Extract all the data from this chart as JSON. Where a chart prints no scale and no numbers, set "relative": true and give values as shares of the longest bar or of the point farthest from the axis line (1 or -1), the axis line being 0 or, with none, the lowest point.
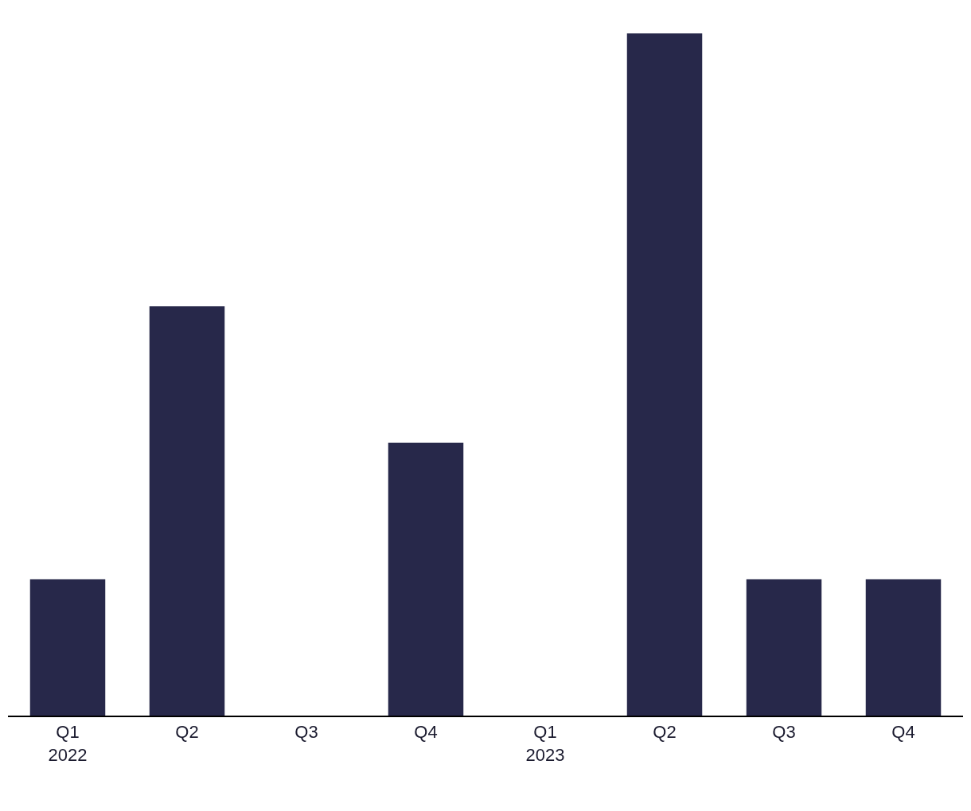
{
  "chart_data": {
    "type": "bar",
    "relative": true,
    "categories": [
      "Q1\n2022",
      "Q2",
      "Q3",
      "Q4",
      "Q1\n2023",
      "Q2",
      "Q3",
      "Q4"
    ],
    "values": [
      0.2,
      0.6,
      0,
      0.4,
      0,
      1,
      0.2,
      0.2
    ],
    "color": "#27284a"
  }
}
